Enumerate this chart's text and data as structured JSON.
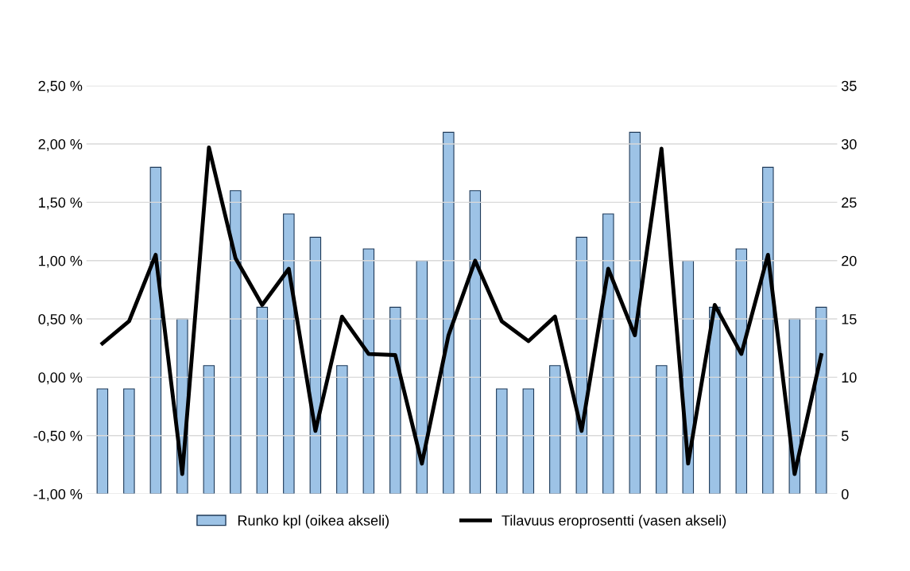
{
  "chart_data": {
    "type": "bar",
    "categories": [
      null,
      null,
      null,
      null,
      null,
      null,
      null,
      null,
      null,
      null,
      null,
      null,
      null,
      null,
      null,
      null,
      null,
      null,
      null,
      null,
      null,
      null,
      null,
      null,
      null,
      null,
      null,
      null
    ],
    "series": [
      {
        "name": "Runko kpl (oikea akseli)",
        "axis": "y2",
        "color": "#9dc3e6",
        "values": [
          9,
          9,
          28,
          15,
          11,
          26,
          16,
          24,
          22,
          11,
          21,
          16,
          20,
          31,
          26,
          9,
          9,
          11,
          22,
          24,
          31,
          11,
          20,
          16,
          21,
          28,
          15,
          16
        ]
      },
      {
        "name": "Tilavuus eroprosentti (vasen akseli)",
        "type": "line",
        "color": "#000000",
        "values": [
          0.29,
          0.48,
          1.05,
          -0.83,
          1.97,
          1.02,
          0.62,
          0.93,
          -0.46,
          0.52,
          0.2,
          0.19,
          -0.74,
          0.36,
          1.0,
          0.48,
          0.31,
          0.52,
          -0.46,
          0.93,
          0.36,
          1.96,
          -0.74,
          0.62,
          0.2,
          1.05,
          -0.83,
          0.19
        ]
      }
    ],
    "ylim": [
      -1.0,
      2.5
    ],
    "yticks": [
      {
        "value": -1.0,
        "label": "-1,00 %"
      },
      {
        "value": -0.5,
        "label": "-0,50 %"
      },
      {
        "value": 0.0,
        "label": "0,00 %"
      },
      {
        "value": 0.5,
        "label": "0,50 %"
      },
      {
        "value": 1.0,
        "label": "1,00 %"
      },
      {
        "value": 1.5,
        "label": "1,50 %"
      },
      {
        "value": 2.0,
        "label": "2,00 %"
      },
      {
        "value": 2.5,
        "label": "2,50 %"
      }
    ],
    "y2lim": [
      0,
      35
    ],
    "y2ticks": [
      0,
      5,
      10,
      15,
      20,
      25,
      30,
      35
    ],
    "grid": "y",
    "legend": "bottom",
    "marker": "none",
    "line_style": "solid"
  }
}
